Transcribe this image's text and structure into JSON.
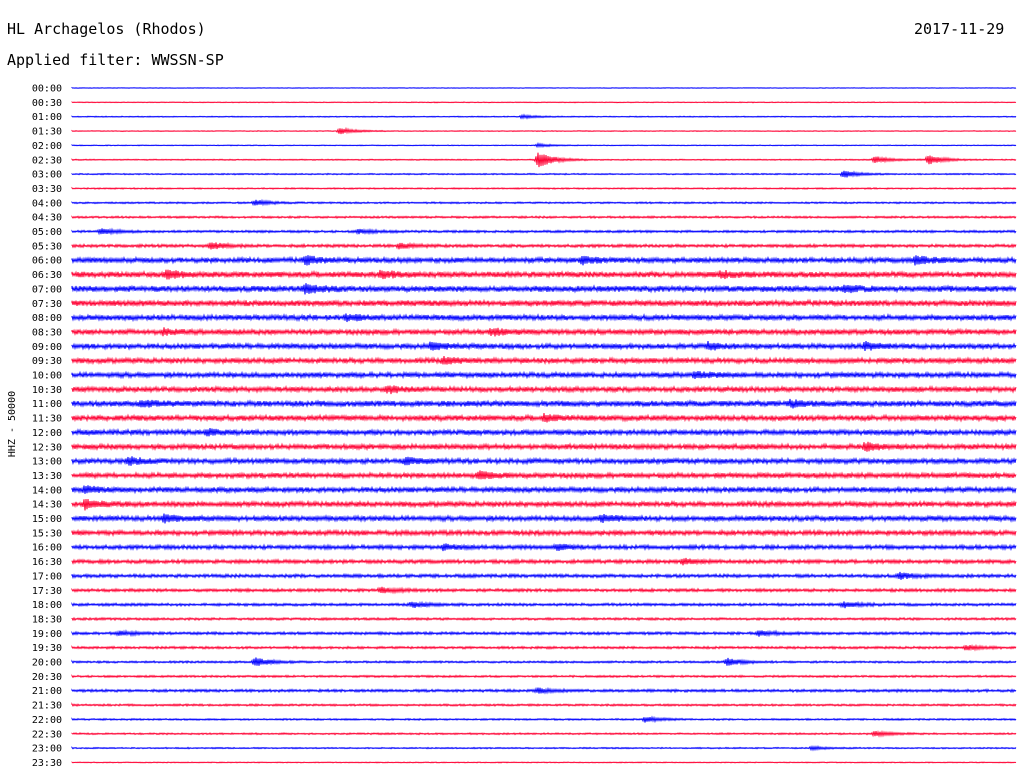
{
  "header": {
    "station": "HL Archagelos (Rhodos)",
    "date": "2017-11-29",
    "filter": "Applied filter: WWSSN-SP"
  },
  "chart_data": {
    "type": "line",
    "title": "HL Archagelos (Rhodos)",
    "subtitle": "Applied filter: WWSSN-SP",
    "ylabel": "HHZ - 50000",
    "xlabel": "",
    "colors": {
      "even_rows": "#0000ff",
      "odd_rows": "#ff0033"
    },
    "rows": [
      "00:00",
      "00:30",
      "01:00",
      "01:30",
      "02:00",
      "02:30",
      "03:00",
      "03:30",
      "04:00",
      "04:30",
      "05:00",
      "05:30",
      "06:00",
      "06:30",
      "07:00",
      "07:30",
      "08:00",
      "08:30",
      "09:00",
      "09:30",
      "10:00",
      "10:30",
      "11:00",
      "11:30",
      "12:00",
      "12:30",
      "13:00",
      "13:30",
      "14:00",
      "14:30",
      "15:00",
      "15:30",
      "16:00",
      "16:30",
      "17:00",
      "17:30",
      "18:00",
      "18:30",
      "19:00",
      "19:30",
      "20:00",
      "20:30",
      "21:00",
      "21:30",
      "22:00",
      "22:30",
      "23:00",
      "23:30"
    ],
    "noise_level": [
      0.04,
      0.05,
      0.06,
      0.05,
      0.05,
      0.07,
      0.08,
      0.08,
      0.1,
      0.12,
      0.14,
      0.18,
      0.3,
      0.34,
      0.36,
      0.34,
      0.32,
      0.3,
      0.3,
      0.3,
      0.3,
      0.3,
      0.34,
      0.32,
      0.3,
      0.3,
      0.3,
      0.3,
      0.3,
      0.3,
      0.3,
      0.28,
      0.24,
      0.22,
      0.2,
      0.18,
      0.16,
      0.14,
      0.16,
      0.14,
      0.12,
      0.12,
      0.16,
      0.12,
      0.1,
      0.1,
      0.08,
      0.06
    ],
    "events": [
      {
        "row": 2,
        "minute": 14.3,
        "amplitude": 0.3
      },
      {
        "row": 3,
        "minute": 8.5,
        "amplitude": 0.6
      },
      {
        "row": 4,
        "minute": 14.8,
        "amplitude": 0.3
      },
      {
        "row": 5,
        "minute": 14.8,
        "amplitude": 1.5
      },
      {
        "row": 5,
        "minute": 27.2,
        "amplitude": 0.9
      },
      {
        "row": 5,
        "minute": 25.5,
        "amplitude": 0.6
      },
      {
        "row": 6,
        "minute": 24.5,
        "amplitude": 0.7
      },
      {
        "row": 8,
        "minute": 5.8,
        "amplitude": 0.5
      },
      {
        "row": 10,
        "minute": 0.9,
        "amplitude": 0.5
      },
      {
        "row": 10,
        "minute": 9.1,
        "amplitude": 0.4
      },
      {
        "row": 11,
        "minute": 4.4,
        "amplitude": 0.6
      },
      {
        "row": 11,
        "minute": 10.4,
        "amplitude": 0.5
      },
      {
        "row": 12,
        "minute": 7.4,
        "amplitude": 0.7
      },
      {
        "row": 12,
        "minute": 16.2,
        "amplitude": 0.6
      },
      {
        "row": 12,
        "minute": 26.8,
        "amplitude": 0.8
      },
      {
        "row": 13,
        "minute": 3.0,
        "amplitude": 0.7
      },
      {
        "row": 13,
        "minute": 9.8,
        "amplitude": 0.6
      },
      {
        "row": 13,
        "minute": 20.6,
        "amplitude": 0.5
      },
      {
        "row": 14,
        "minute": 7.4,
        "amplitude": 0.7
      },
      {
        "row": 14,
        "minute": 24.5,
        "amplitude": 0.5
      },
      {
        "row": 16,
        "minute": 8.7,
        "amplitude": 0.5
      },
      {
        "row": 17,
        "minute": 2.9,
        "amplitude": 0.5
      },
      {
        "row": 17,
        "minute": 13.3,
        "amplitude": 0.6
      },
      {
        "row": 18,
        "minute": 11.4,
        "amplitude": 0.6
      },
      {
        "row": 18,
        "minute": 20.2,
        "amplitude": 0.6
      },
      {
        "row": 18,
        "minute": 25.2,
        "amplitude": 0.6
      },
      {
        "row": 19,
        "minute": 11.8,
        "amplitude": 0.5
      },
      {
        "row": 20,
        "minute": 19.8,
        "amplitude": 0.5
      },
      {
        "row": 21,
        "minute": 10.0,
        "amplitude": 0.6
      },
      {
        "row": 22,
        "minute": 2.2,
        "amplitude": 0.5
      },
      {
        "row": 22,
        "minute": 22.8,
        "amplitude": 0.5
      },
      {
        "row": 23,
        "minute": 15.0,
        "amplitude": 0.5
      },
      {
        "row": 24,
        "minute": 4.3,
        "amplitude": 0.5
      },
      {
        "row": 25,
        "minute": 25.2,
        "amplitude": 0.7
      },
      {
        "row": 26,
        "minute": 1.8,
        "amplitude": 0.6
      },
      {
        "row": 26,
        "minute": 10.6,
        "amplitude": 0.6
      },
      {
        "row": 27,
        "minute": 12.9,
        "amplitude": 0.6
      },
      {
        "row": 28,
        "minute": 0.4,
        "amplitude": 0.6
      },
      {
        "row": 29,
        "minute": 0.4,
        "amplitude": 0.8
      },
      {
        "row": 30,
        "minute": 2.9,
        "amplitude": 0.7
      },
      {
        "row": 30,
        "minute": 16.8,
        "amplitude": 0.6
      },
      {
        "row": 32,
        "minute": 11.8,
        "amplitude": 0.5
      },
      {
        "row": 32,
        "minute": 15.4,
        "amplitude": 0.5
      },
      {
        "row": 33,
        "minute": 19.4,
        "amplitude": 0.5
      },
      {
        "row": 34,
        "minute": 26.3,
        "amplitude": 0.5
      },
      {
        "row": 35,
        "minute": 9.8,
        "amplitude": 0.5
      },
      {
        "row": 36,
        "minute": 10.8,
        "amplitude": 0.5
      },
      {
        "row": 36,
        "minute": 24.5,
        "amplitude": 0.5
      },
      {
        "row": 38,
        "minute": 1.5,
        "amplitude": 0.4
      },
      {
        "row": 38,
        "minute": 21.8,
        "amplitude": 0.5
      },
      {
        "row": 39,
        "minute": 28.4,
        "amplitude": 0.4
      },
      {
        "row": 40,
        "minute": 5.8,
        "amplitude": 0.8
      },
      {
        "row": 40,
        "minute": 20.8,
        "amplitude": 0.7
      },
      {
        "row": 42,
        "minute": 14.8,
        "amplitude": 0.4
      },
      {
        "row": 44,
        "minute": 18.2,
        "amplitude": 0.5
      },
      {
        "row": 45,
        "minute": 25.5,
        "amplitude": 0.5
      },
      {
        "row": 46,
        "minute": 23.5,
        "amplitude": 0.3
      }
    ]
  }
}
